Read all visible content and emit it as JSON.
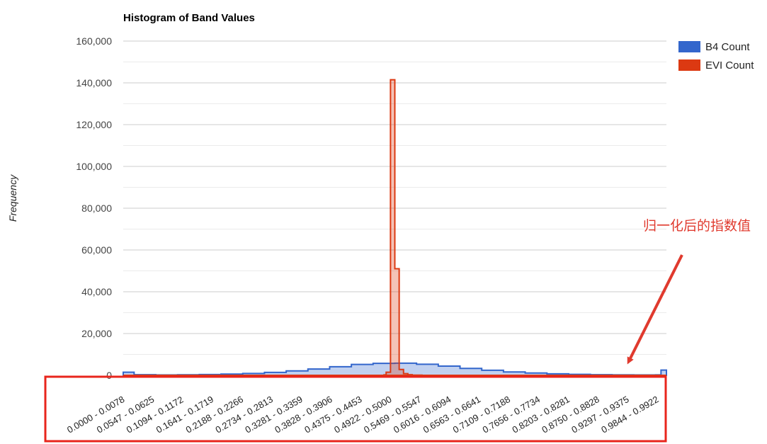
{
  "chart_data": {
    "type": "area",
    "title": "Histogram of Band Values",
    "xlabel": "",
    "ylabel": "Frequency",
    "ylim": [
      0,
      160000
    ],
    "y_ticks": [
      "0",
      "20,000",
      "40,000",
      "60,000",
      "80,000",
      "100,000",
      "120,000",
      "140,000",
      "160,000"
    ],
    "grid": true,
    "legend_position": "top-right",
    "categories": [
      "0.0000 - 0.0078",
      "0.0547 - 0.0625",
      "0.1094 - 0.1172",
      "0.1641 - 0.1719",
      "0.2188 - 0.2266",
      "0.2734 - 0.2813",
      "0.3281 - 0.3359",
      "0.3828 - 0.3906",
      "0.4375 - 0.4453",
      "0.4922 - 0.5000",
      "0.5469 - 0.5547",
      "0.6016 - 0.6094",
      "0.6563 - 0.6641",
      "0.7109 - 0.7188",
      "0.7656 - 0.7734",
      "0.8203 - 0.8281",
      "0.8750 - 0.8828",
      "0.9297 - 0.9375",
      "0.9844 - 0.9922"
    ],
    "series": [
      {
        "name": "B4 Count",
        "color": "#3366cc",
        "x": [
          0.0,
          0.02,
          0.06,
          0.1,
          0.14,
          0.18,
          0.22,
          0.26,
          0.3,
          0.34,
          0.38,
          0.42,
          0.46,
          0.5,
          0.54,
          0.58,
          0.62,
          0.66,
          0.7,
          0.74,
          0.78,
          0.82,
          0.86,
          0.9,
          0.94,
          0.98,
          0.99,
          1.0
        ],
        "values": [
          1500,
          300,
          150,
          250,
          400,
          600,
          900,
          1400,
          2100,
          3000,
          4100,
          5200,
          5700,
          5800,
          5300,
          4400,
          3300,
          2400,
          1600,
          1100,
          700,
          450,
          300,
          200,
          150,
          200,
          2500,
          2500
        ]
      },
      {
        "name": "EVI Count",
        "color": "#dc3912",
        "x": [
          0.0,
          0.46,
          0.48,
          0.484,
          0.492,
          0.5,
          0.508,
          0.516,
          0.524,
          0.532,
          0.55,
          1.0
        ],
        "values": [
          0,
          0,
          200,
          1500,
          141500,
          51000,
          2800,
          800,
          300,
          100,
          0,
          0
        ]
      }
    ]
  },
  "annotation": {
    "text": "归一化后的指数值",
    "color": "#e03a2e"
  }
}
